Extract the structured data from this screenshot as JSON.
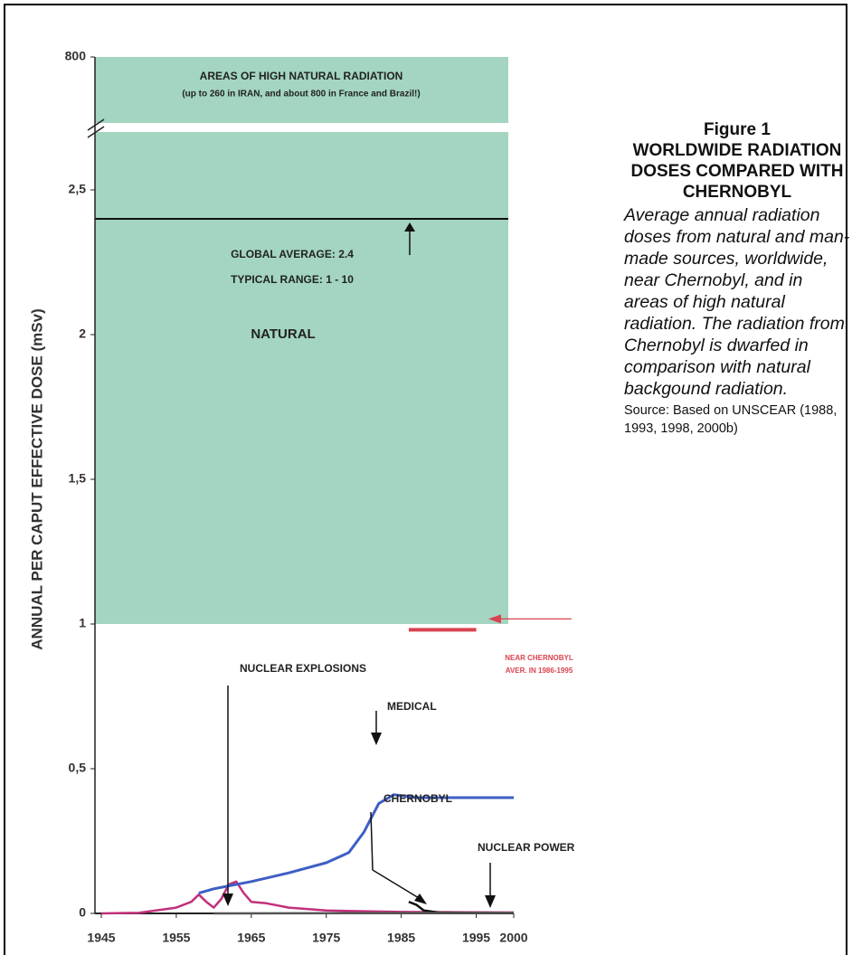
{
  "chart_data": {
    "type": "line",
    "figure_label": "Figure 1",
    "title": "WORLDWIDE RADIATION DOSES COMPARED WITH CHERNOBYL",
    "description": "Average annual radiation doses from natural and man-made sources, worldwide, near Chernobyl, and in areas of high natural radiation. The radiation from Chernobyl is dwarfed in comparison with natural backgound radiation.",
    "source": "Source: Based on UNSCEAR (1988, 1993, 1998, 2000b)",
    "y_label": "ANNUAL PER CAPUT EFFECTIVE DOSE (mSv)",
    "xlim": [
      1945,
      2000
    ],
    "xticks": [
      1945,
      1955,
      1965,
      1975,
      1985,
      1995,
      2000
    ],
    "ylim": [
      0,
      2.7
    ],
    "yticks": [
      0,
      {
        "value": 0.5,
        "label": "0,5"
      },
      1,
      {
        "value": 1.5,
        "label": "1,5"
      },
      2,
      {
        "value": 2.5,
        "label": "2,5"
      },
      800
    ],
    "natural_floor": 1,
    "global_average": 2.4,
    "near_chernobyl": {
      "x": [
        1986,
        1995
      ],
      "value": 0.98,
      "color": "#d9434f"
    },
    "annotations": [
      "AREAS OF HIGH NATURAL RADIATION",
      "(up to 260 in IRAN, and about 800 in France and Brazil!)",
      "GLOBAL AVERAGE: 2.4",
      "TYPICAL RANGE: 1 - 10",
      "NATURAL",
      "NEAR CHERNOBYL",
      "AVER. IN 1986-1995"
    ],
    "series": [
      {
        "name": "NUCLEAR EXPLOSIONS",
        "color": "#c2307c",
        "x": [
          1945,
          1950,
          1955,
          1957,
          1958,
          1959,
          1960,
          1961,
          1962,
          1963,
          1964,
          1965,
          1967,
          1970,
          1975,
          1985,
          2000
        ],
        "values": [
          0,
          0.002,
          0.02,
          0.04,
          0.065,
          0.04,
          0.02,
          0.05,
          0.1,
          0.11,
          0.07,
          0.04,
          0.035,
          0.02,
          0.01,
          0.005,
          0.003
        ]
      },
      {
        "name": "MEDICAL",
        "color": "#3d5fc4",
        "x": [
          1958,
          1960,
          1965,
          1970,
          1975,
          1978,
          1980,
          1982,
          1984,
          1987,
          2000
        ],
        "values": [
          0.07,
          0.085,
          0.11,
          0.14,
          0.175,
          0.21,
          0.28,
          0.38,
          0.41,
          0.4,
          0.4
        ]
      },
      {
        "name": "CHERNOBYL",
        "color": "#111111",
        "x": [
          1986,
          1987,
          1988,
          1990,
          2000
        ],
        "values": [
          0.04,
          0.03,
          0.01,
          0.003,
          0.001
        ]
      },
      {
        "name": "NUCLEAR POWER",
        "color": "#555555",
        "x": [
          1960,
          2000
        ],
        "values": [
          0,
          0.002
        ]
      }
    ]
  }
}
